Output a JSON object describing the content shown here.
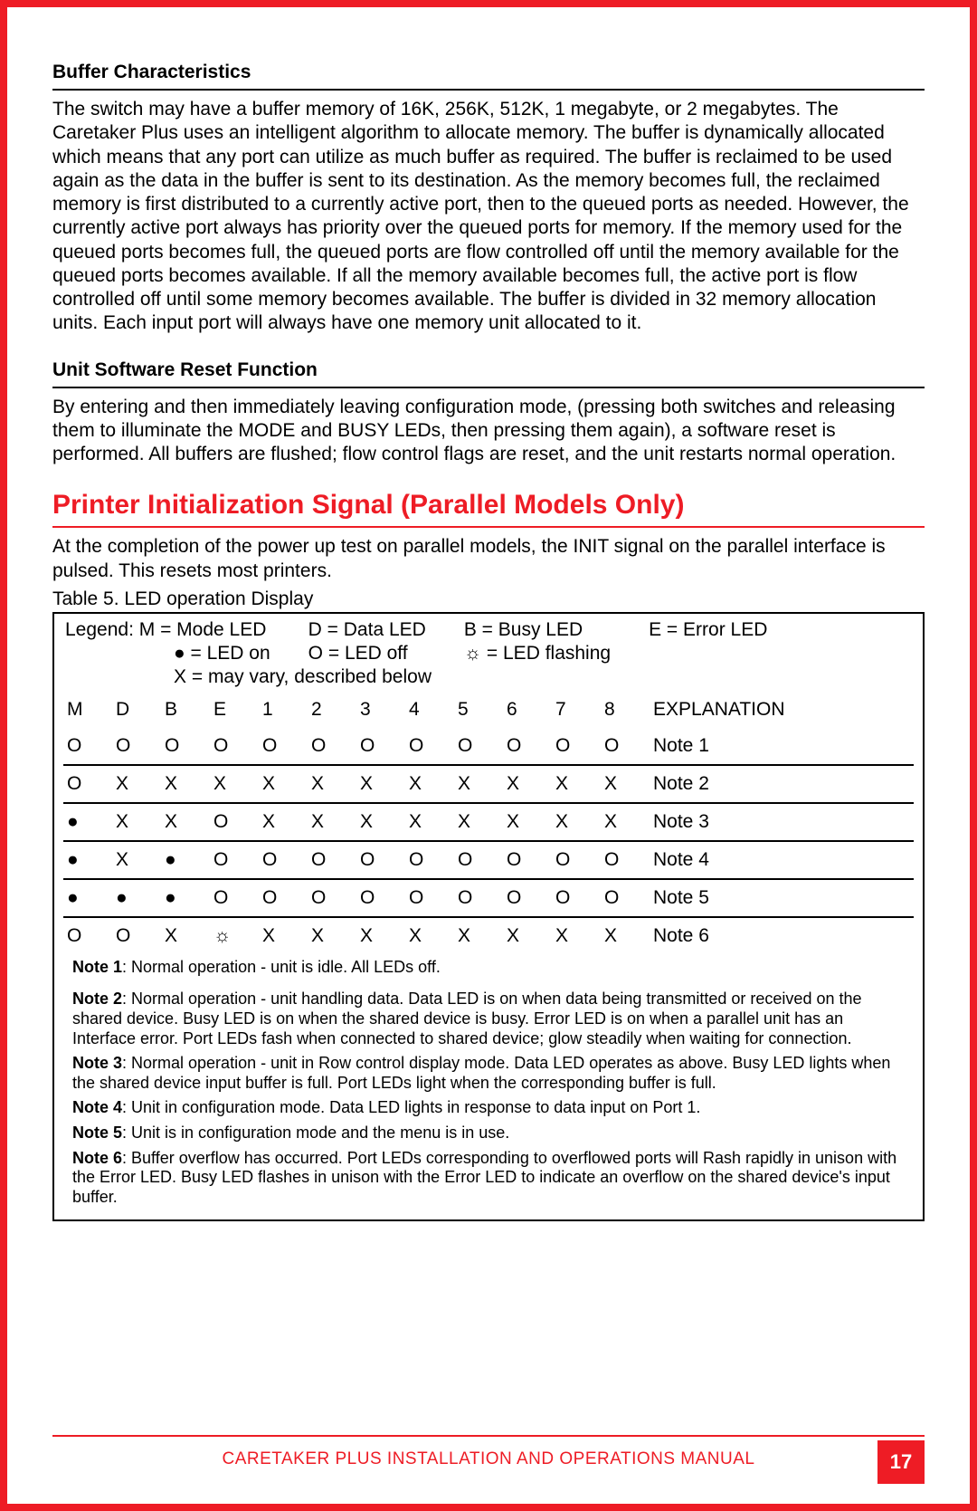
{
  "section1": {
    "heading": "Buffer Characteristics",
    "body": "The switch may have a buffer memory of 16K, 256K, 512K, 1 megabyte, or 2 megabytes. The Caretaker Plus uses an intelligent algorithm to allocate memory. The buffer is dynamically allocated which means that any port can utilize as much buffer as required. The buffer is reclaimed to be used again as the data in the buffer is sent to its destination. As the memory becomes full, the reclaimed memory is first distributed to a currently active port, then to the queued ports as needed. However, the currently active port always has priority over the queued ports for memory. If the memory used for the queued ports becomes full, the queued ports are flow controlled off until the memory available for the queued ports becomes available. If all the memory available becomes full, the active port is flow controlled off until some memory becomes available. The buffer is divided in 32 memory allocation units. Each input port will always have one memory unit allocated to it."
  },
  "section2": {
    "heading": "Unit Software Reset Function",
    "body": "By entering and then immediately leaving configuration mode, (pressing both switches and releasing them to illuminate the MODE and BUSY LEDs, then pressing them again), a software reset is performed. All buffers are flushed; flow control flags are reset, and the unit restarts normal operation."
  },
  "section3": {
    "heading": "Printer Initialization Signal (Parallel Models Only)",
    "body": "At the completion of the power up test on parallel models, the INIT signal on the parallel interface is pulsed. This resets most printers."
  },
  "tableCaption": "Table 5. LED operation Display",
  "legend": {
    "l1a": "Legend: M = Mode LED",
    "l1b": "D = Data LED",
    "l1c": "B = Busy LED",
    "l1d": "E = Error LED",
    "l2a": "● = LED on",
    "l2b": "O = LED off",
    "l2c": "☼ = LED flashing",
    "l3": "X = may vary, described below"
  },
  "tableHeader": {
    "c": [
      "M",
      "D",
      "B",
      "E",
      "1",
      "2",
      "3",
      "4",
      "5",
      "6",
      "7",
      "8"
    ],
    "expl": "EXPLANATION"
  },
  "rows": [
    {
      "c": [
        "O",
        "O",
        "O",
        "O",
        "O",
        "O",
        "O",
        "O",
        "O",
        "O",
        "O",
        "O"
      ],
      "note": "Note 1"
    },
    {
      "c": [
        "O",
        "X",
        "X",
        "X",
        "X",
        "X",
        "X",
        "X",
        "X",
        "X",
        "X",
        "X"
      ],
      "note": "Note 2"
    },
    {
      "c": [
        "●",
        "X",
        "X",
        "O",
        "X",
        "X",
        "X",
        "X",
        "X",
        "X",
        "X",
        "X"
      ],
      "note": "Note 3"
    },
    {
      "c": [
        "●",
        "X",
        "●",
        "O",
        "O",
        "O",
        "O",
        "O",
        "O",
        "O",
        "O",
        "O"
      ],
      "note": "Note 4"
    },
    {
      "c": [
        "●",
        "●",
        "●",
        "O",
        "O",
        "O",
        "O",
        "O",
        "O",
        "O",
        "O",
        "O"
      ],
      "note": "Note 5"
    },
    {
      "c": [
        "O",
        "O",
        "X",
        "☼",
        "X",
        "X",
        "X",
        "X",
        "X",
        "X",
        "X",
        "X"
      ],
      "note": "Note 6"
    }
  ],
  "notes": {
    "n1l": "Note 1",
    "n1": ": Normal operation - unit is idle. All LEDs off.",
    "n2l": "Note 2",
    "n2": ": Normal operation - unit handling data. Data LED is on when data being transmitted or received on the shared device. Busy LED is on when the shared device is busy. Error LED is on when a parallel unit has an Interface error. Port LEDs fash when connected to shared device; glow steadily when waiting for connection.",
    "n3l": "Note 3",
    "n3": ": Normal operation - unit in Row control display mode. Data LED operates as above. Busy LED lights when the shared device input buffer is full. Port LEDs light when the corresponding buffer is full.",
    "n4l": "Note 4",
    "n4": ": Unit in configuration mode. Data LED lights in response to data input on Port 1.",
    "n5l": "Note 5",
    "n5": ": Unit is in configuration mode and the menu is in use.",
    "n6l": "Note 6",
    "n6": ": Buffer overflow has occurred. Port LEDs corresponding to overflowed ports will Rash rapidly in unison with the Error LED. Busy LED flashes in unison with the Error LED to indicate an overflow on the shared device's input buffer."
  },
  "footer": {
    "text": "CARETAKER PLUS INSTALLATION AND OPERATIONS MANUAL",
    "page": "17"
  }
}
